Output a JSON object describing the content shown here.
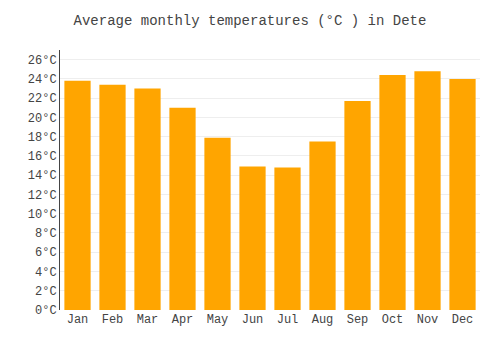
{
  "chart_data": {
    "type": "bar",
    "title": "Average monthly temperatures (°C ) in Dete",
    "categories": [
      "Jan",
      "Feb",
      "Mar",
      "Apr",
      "May",
      "Jun",
      "Jul",
      "Aug",
      "Sep",
      "Oct",
      "Nov",
      "Dec"
    ],
    "values": [
      23.8,
      23.4,
      23.0,
      21.0,
      17.9,
      14.9,
      14.8,
      17.5,
      21.7,
      24.4,
      24.8,
      24.0
    ],
    "color": "#FFA500",
    "ylim": [
      0,
      27
    ],
    "yticks": [
      {
        "value": 0,
        "label": "0°C"
      },
      {
        "value": 2,
        "label": "2°C"
      },
      {
        "value": 4,
        "label": "4°C"
      },
      {
        "value": 6,
        "label": "6°C"
      },
      {
        "value": 8,
        "label": "8°C"
      },
      {
        "value": 10,
        "label": "10°C"
      },
      {
        "value": 12,
        "label": "12°C"
      },
      {
        "value": 14,
        "label": "14°C"
      },
      {
        "value": 16,
        "label": "16°C"
      },
      {
        "value": 18,
        "label": "18°C"
      },
      {
        "value": 20,
        "label": "20°C"
      },
      {
        "value": 22,
        "label": "22°C"
      },
      {
        "value": 24,
        "label": "24°C"
      },
      {
        "value": 26,
        "label": "26°C"
      }
    ],
    "grid": true
  }
}
